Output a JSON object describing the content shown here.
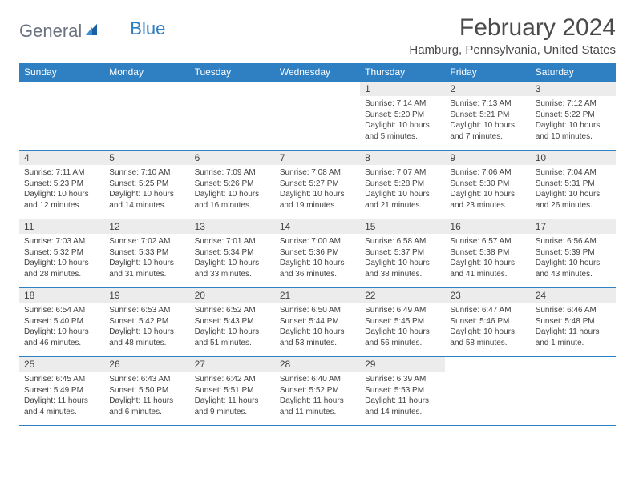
{
  "brand": {
    "part1": "General",
    "part2": "Blue"
  },
  "title": "February 2024",
  "location": "Hamburg, Pennsylvania, United States",
  "colors": {
    "header_bg": "#2f7fc3",
    "header_text": "#ffffff",
    "daynum_bg": "#ececec",
    "body_text": "#424242",
    "logo_gray": "#6b7280",
    "logo_blue": "#2f7fc3",
    "page_bg": "#ffffff"
  },
  "day_names": [
    "Sunday",
    "Monday",
    "Tuesday",
    "Wednesday",
    "Thursday",
    "Friday",
    "Saturday"
  ],
  "weeks": [
    [
      null,
      null,
      null,
      null,
      {
        "n": "1",
        "sr": "Sunrise: 7:14 AM",
        "ss": "Sunset: 5:20 PM",
        "d1": "Daylight: 10 hours",
        "d2": "and 5 minutes."
      },
      {
        "n": "2",
        "sr": "Sunrise: 7:13 AM",
        "ss": "Sunset: 5:21 PM",
        "d1": "Daylight: 10 hours",
        "d2": "and 7 minutes."
      },
      {
        "n": "3",
        "sr": "Sunrise: 7:12 AM",
        "ss": "Sunset: 5:22 PM",
        "d1": "Daylight: 10 hours",
        "d2": "and 10 minutes."
      }
    ],
    [
      {
        "n": "4",
        "sr": "Sunrise: 7:11 AM",
        "ss": "Sunset: 5:23 PM",
        "d1": "Daylight: 10 hours",
        "d2": "and 12 minutes."
      },
      {
        "n": "5",
        "sr": "Sunrise: 7:10 AM",
        "ss": "Sunset: 5:25 PM",
        "d1": "Daylight: 10 hours",
        "d2": "and 14 minutes."
      },
      {
        "n": "6",
        "sr": "Sunrise: 7:09 AM",
        "ss": "Sunset: 5:26 PM",
        "d1": "Daylight: 10 hours",
        "d2": "and 16 minutes."
      },
      {
        "n": "7",
        "sr": "Sunrise: 7:08 AM",
        "ss": "Sunset: 5:27 PM",
        "d1": "Daylight: 10 hours",
        "d2": "and 19 minutes."
      },
      {
        "n": "8",
        "sr": "Sunrise: 7:07 AM",
        "ss": "Sunset: 5:28 PM",
        "d1": "Daylight: 10 hours",
        "d2": "and 21 minutes."
      },
      {
        "n": "9",
        "sr": "Sunrise: 7:06 AM",
        "ss": "Sunset: 5:30 PM",
        "d1": "Daylight: 10 hours",
        "d2": "and 23 minutes."
      },
      {
        "n": "10",
        "sr": "Sunrise: 7:04 AM",
        "ss": "Sunset: 5:31 PM",
        "d1": "Daylight: 10 hours",
        "d2": "and 26 minutes."
      }
    ],
    [
      {
        "n": "11",
        "sr": "Sunrise: 7:03 AM",
        "ss": "Sunset: 5:32 PM",
        "d1": "Daylight: 10 hours",
        "d2": "and 28 minutes."
      },
      {
        "n": "12",
        "sr": "Sunrise: 7:02 AM",
        "ss": "Sunset: 5:33 PM",
        "d1": "Daylight: 10 hours",
        "d2": "and 31 minutes."
      },
      {
        "n": "13",
        "sr": "Sunrise: 7:01 AM",
        "ss": "Sunset: 5:34 PM",
        "d1": "Daylight: 10 hours",
        "d2": "and 33 minutes."
      },
      {
        "n": "14",
        "sr": "Sunrise: 7:00 AM",
        "ss": "Sunset: 5:36 PM",
        "d1": "Daylight: 10 hours",
        "d2": "and 36 minutes."
      },
      {
        "n": "15",
        "sr": "Sunrise: 6:58 AM",
        "ss": "Sunset: 5:37 PM",
        "d1": "Daylight: 10 hours",
        "d2": "and 38 minutes."
      },
      {
        "n": "16",
        "sr": "Sunrise: 6:57 AM",
        "ss": "Sunset: 5:38 PM",
        "d1": "Daylight: 10 hours",
        "d2": "and 41 minutes."
      },
      {
        "n": "17",
        "sr": "Sunrise: 6:56 AM",
        "ss": "Sunset: 5:39 PM",
        "d1": "Daylight: 10 hours",
        "d2": "and 43 minutes."
      }
    ],
    [
      {
        "n": "18",
        "sr": "Sunrise: 6:54 AM",
        "ss": "Sunset: 5:40 PM",
        "d1": "Daylight: 10 hours",
        "d2": "and 46 minutes."
      },
      {
        "n": "19",
        "sr": "Sunrise: 6:53 AM",
        "ss": "Sunset: 5:42 PM",
        "d1": "Daylight: 10 hours",
        "d2": "and 48 minutes."
      },
      {
        "n": "20",
        "sr": "Sunrise: 6:52 AM",
        "ss": "Sunset: 5:43 PM",
        "d1": "Daylight: 10 hours",
        "d2": "and 51 minutes."
      },
      {
        "n": "21",
        "sr": "Sunrise: 6:50 AM",
        "ss": "Sunset: 5:44 PM",
        "d1": "Daylight: 10 hours",
        "d2": "and 53 minutes."
      },
      {
        "n": "22",
        "sr": "Sunrise: 6:49 AM",
        "ss": "Sunset: 5:45 PM",
        "d1": "Daylight: 10 hours",
        "d2": "and 56 minutes."
      },
      {
        "n": "23",
        "sr": "Sunrise: 6:47 AM",
        "ss": "Sunset: 5:46 PM",
        "d1": "Daylight: 10 hours",
        "d2": "and 58 minutes."
      },
      {
        "n": "24",
        "sr": "Sunrise: 6:46 AM",
        "ss": "Sunset: 5:48 PM",
        "d1": "Daylight: 11 hours",
        "d2": "and 1 minute."
      }
    ],
    [
      {
        "n": "25",
        "sr": "Sunrise: 6:45 AM",
        "ss": "Sunset: 5:49 PM",
        "d1": "Daylight: 11 hours",
        "d2": "and 4 minutes."
      },
      {
        "n": "26",
        "sr": "Sunrise: 6:43 AM",
        "ss": "Sunset: 5:50 PM",
        "d1": "Daylight: 11 hours",
        "d2": "and 6 minutes."
      },
      {
        "n": "27",
        "sr": "Sunrise: 6:42 AM",
        "ss": "Sunset: 5:51 PM",
        "d1": "Daylight: 11 hours",
        "d2": "and 9 minutes."
      },
      {
        "n": "28",
        "sr": "Sunrise: 6:40 AM",
        "ss": "Sunset: 5:52 PM",
        "d1": "Daylight: 11 hours",
        "d2": "and 11 minutes."
      },
      {
        "n": "29",
        "sr": "Sunrise: 6:39 AM",
        "ss": "Sunset: 5:53 PM",
        "d1": "Daylight: 11 hours",
        "d2": "and 14 minutes."
      },
      null,
      null
    ]
  ]
}
